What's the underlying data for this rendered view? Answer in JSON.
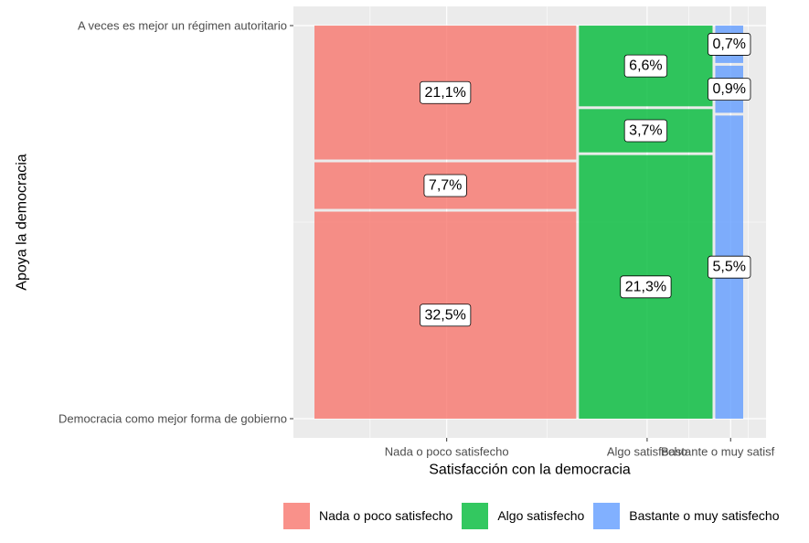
{
  "chart_data": {
    "type": "mosaic",
    "xlabel": "Satisfacción con la democracia",
    "ylabel": "Apoya la democracia",
    "x_categories": [
      "Nada o poco satisfecho",
      "Algo satisfecho",
      "Bastante o muy satisfecho"
    ],
    "x_tick_labels": [
      "Nada o poco satisfecho",
      "Algo satisfecho",
      "Bastante o muy satisfecho"
    ],
    "y_tick_labels": [
      "A veces es mejor un régimen autoritario",
      "Democracia como mejor forma de gobierno"
    ],
    "column_shares": [
      0.613,
      0.316,
      0.071
    ],
    "cells": [
      {
        "x": "Nada o poco satisfecho",
        "y": "Democracia como mejor forma de gobierno",
        "value": 32.5,
        "label": "32,5%"
      },
      {
        "x": "Nada o poco satisfecho",
        "y": "middle",
        "value": 7.7,
        "label": "7,7%"
      },
      {
        "x": "Nada o poco satisfecho",
        "y": "A veces es mejor un régimen autoritario",
        "value": 21.1,
        "label": "21,1%"
      },
      {
        "x": "Algo satisfecho",
        "y": "Democracia como mejor forma de gobierno",
        "value": 21.3,
        "label": "21,3%"
      },
      {
        "x": "Algo satisfecho",
        "y": "middle",
        "value": 3.7,
        "label": "3,7%"
      },
      {
        "x": "Algo satisfecho",
        "y": "A veces es mejor un régimen autoritario",
        "value": 6.6,
        "label": "6,6%"
      },
      {
        "x": "Bastante o muy satisfecho",
        "y": "Democracia como mejor forma de gobierno",
        "value": 5.5,
        "label": "5,5%"
      },
      {
        "x": "Bastante o muy satisfecho",
        "y": "middle",
        "value": 0.9,
        "label": "0,9%"
      },
      {
        "x": "Bastante o muy satisfecho",
        "y": "A veces es mejor un régimen autoritario",
        "value": 0.7,
        "label": "0,7%"
      }
    ],
    "legend": {
      "position": "bottom",
      "entries": [
        {
          "label": "Nada o poco satisfecho",
          "color": "#F8766D"
        },
        {
          "label": "Algo satisfecho",
          "color": "#00BA38"
        },
        {
          "label": "Bastante o muy satisfecho",
          "color": "#619CFF"
        }
      ]
    },
    "colors": {
      "panel_background": "#EBEBEB",
      "grid": "#FFFFFF",
      "tile_alpha": 0.8
    },
    "grid": true
  }
}
